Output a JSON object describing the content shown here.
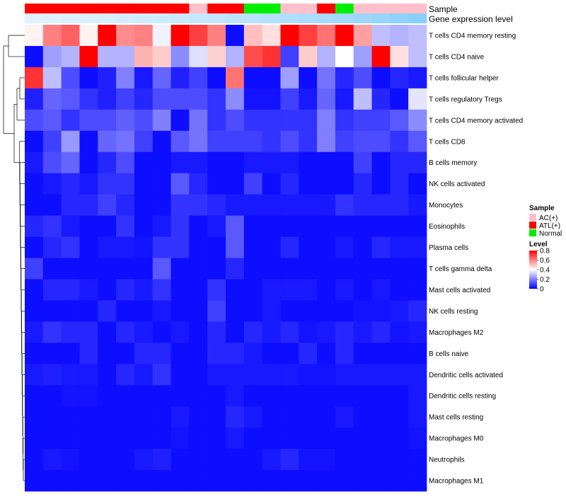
{
  "chart_data": {
    "type": "heatmap",
    "title": "",
    "annotations": {
      "sample_label": "Sample",
      "expression_label": "Gene expression level",
      "sample_groups": [
        "ATL(+)",
        "ATL(+)",
        "ATL(+)",
        "ATL(+)",
        "ATL(+)",
        "ATL(+)",
        "ATL(+)",
        "ATL(+)",
        "ATL(+)",
        "AC(+)",
        "ATL(+)",
        "ATL(+)",
        "Normal",
        "Normal",
        "AC(+)",
        "AC(+)",
        "ATL(+)",
        "Normal",
        "AC(+)",
        "AC(+)",
        "AC(+)",
        "AC(+)"
      ],
      "expression_levels": [
        0.0,
        0.02,
        0.05,
        0.08,
        0.12,
        0.15,
        0.18,
        0.22,
        0.26,
        0.3,
        0.35,
        0.4,
        0.45,
        0.5,
        0.55,
        0.6,
        0.65,
        0.7,
        0.75,
        0.82,
        0.9,
        0.97
      ]
    },
    "rows": [
      "T cells CD4 memory resting",
      "T cells CD4 naive",
      "T cells follicular helper",
      "T cells regulatory  Tregs",
      "T cells CD4 memory activated",
      "T cells CD8",
      "B cells memory",
      "NK cells activated",
      "Monocytes",
      "Eosinophils",
      "Plasma cells",
      "T cells gamma delta",
      "Mast cells activated",
      "NK cells resting",
      "Macrophages M2",
      "B cells naive",
      "Dendritic cells activated",
      "Dendritic cells resting",
      "Mast cells resting",
      "Macrophages M0",
      "Neutrophils",
      "Macrophages M1"
    ],
    "values": [
      [
        0.42,
        0.6,
        0.65,
        0.42,
        0.8,
        0.58,
        0.6,
        0.38,
        0.8,
        0.7,
        0.6,
        0.02,
        0.5,
        0.45,
        0.8,
        0.7,
        0.62,
        0.8,
        0.55,
        0.3,
        0.28,
        0.3
      ],
      [
        0.02,
        0.25,
        0.28,
        0.8,
        0.28,
        0.28,
        0.52,
        0.48,
        0.22,
        0.35,
        0.47,
        0.28,
        0.68,
        0.72,
        0.1,
        0.48,
        0.28,
        0.4,
        0.25,
        0.8,
        0.45,
        0.3
      ],
      [
        0.72,
        0.3,
        0.12,
        0.02,
        0.05,
        0.2,
        0.04,
        0.16,
        0.05,
        0.1,
        0.02,
        0.62,
        0.02,
        0.02,
        0.25,
        0.02,
        0.18,
        0.06,
        0.12,
        0.02,
        0.06,
        0.04
      ],
      [
        0.05,
        0.16,
        0.14,
        0.08,
        0.05,
        0.1,
        0.06,
        0.12,
        0.12,
        0.12,
        0.08,
        0.22,
        0.03,
        0.03,
        0.1,
        0.04,
        0.16,
        0.04,
        0.3,
        0.06,
        0.02,
        0.36
      ],
      [
        0.12,
        0.14,
        0.08,
        0.12,
        0.12,
        0.15,
        0.12,
        0.2,
        0.02,
        0.18,
        0.08,
        0.12,
        0.08,
        0.08,
        0.08,
        0.08,
        0.2,
        0.08,
        0.1,
        0.1,
        0.14,
        0.22
      ],
      [
        0.02,
        0.1,
        0.24,
        0.02,
        0.16,
        0.18,
        0.1,
        0.02,
        0.14,
        0.18,
        0.1,
        0.1,
        0.1,
        0.08,
        0.12,
        0.08,
        0.2,
        0.1,
        0.12,
        0.12,
        0.08,
        0.14
      ],
      [
        0.04,
        0.12,
        0.16,
        0.02,
        0.06,
        0.12,
        0.02,
        0.02,
        0.04,
        0.04,
        0.02,
        0.02,
        0.04,
        0.04,
        0.04,
        0.02,
        0.02,
        0.02,
        0.1,
        0.02,
        0.06,
        0.06
      ],
      [
        0.02,
        0.04,
        0.06,
        0.04,
        0.08,
        0.08,
        0.02,
        0.02,
        0.14,
        0.06,
        0.02,
        0.02,
        0.1,
        0.02,
        0.06,
        0.02,
        0.02,
        0.02,
        0.06,
        0.02,
        0.06,
        0.02
      ],
      [
        0.02,
        0.02,
        0.06,
        0.06,
        0.1,
        0.06,
        0.02,
        0.02,
        0.08,
        0.08,
        0.06,
        0.04,
        0.04,
        0.04,
        0.04,
        0.04,
        0.04,
        0.08,
        0.06,
        0.06,
        0.06,
        0.04
      ],
      [
        0.06,
        0.08,
        0.04,
        0.02,
        0.02,
        0.08,
        0.02,
        0.04,
        0.08,
        0.02,
        0.04,
        0.14,
        0.02,
        0.02,
        0.02,
        0.02,
        0.02,
        0.02,
        0.02,
        0.02,
        0.02,
        0.02
      ],
      [
        0.02,
        0.06,
        0.08,
        0.02,
        0.04,
        0.04,
        0.03,
        0.08,
        0.08,
        0.02,
        0.02,
        0.14,
        0.02,
        0.02,
        0.06,
        0.02,
        0.02,
        0.04,
        0.02,
        0.06,
        0.04,
        0.04
      ],
      [
        0.1,
        0.02,
        0.02,
        0.02,
        0.02,
        0.02,
        0.02,
        0.14,
        0.02,
        0.02,
        0.02,
        0.06,
        0.02,
        0.02,
        0.02,
        0.02,
        0.02,
        0.02,
        0.02,
        0.02,
        0.02,
        0.02
      ],
      [
        0.02,
        0.06,
        0.06,
        0.04,
        0.02,
        0.06,
        0.04,
        0.08,
        0.02,
        0.02,
        0.08,
        0.02,
        0.02,
        0.04,
        0.04,
        0.04,
        0.02,
        0.04,
        0.02,
        0.04,
        0.02,
        0.02
      ],
      [
        0.02,
        0.02,
        0.02,
        0.02,
        0.06,
        0.02,
        0.02,
        0.04,
        0.02,
        0.02,
        0.1,
        0.02,
        0.02,
        0.04,
        0.02,
        0.02,
        0.02,
        0.02,
        0.03,
        0.03,
        0.04,
        0.06
      ],
      [
        0.04,
        0.08,
        0.06,
        0.06,
        0.02,
        0.06,
        0.04,
        0.02,
        0.04,
        0.02,
        0.06,
        0.02,
        0.06,
        0.04,
        0.06,
        0.03,
        0.04,
        0.06,
        0.04,
        0.06,
        0.03,
        0.04
      ],
      [
        0.02,
        0.02,
        0.02,
        0.06,
        0.02,
        0.02,
        0.06,
        0.06,
        0.02,
        0.02,
        0.06,
        0.06,
        0.04,
        0.02,
        0.02,
        0.06,
        0.02,
        0.06,
        0.02,
        0.02,
        0.02,
        0.02
      ],
      [
        0.04,
        0.05,
        0.04,
        0.04,
        0.02,
        0.06,
        0.04,
        0.08,
        0.02,
        0.02,
        0.04,
        0.04,
        0.04,
        0.04,
        0.04,
        0.03,
        0.03,
        0.04,
        0.04,
        0.04,
        0.04,
        0.04
      ],
      [
        0.02,
        0.02,
        0.03,
        0.03,
        0.02,
        0.02,
        0.02,
        0.02,
        0.02,
        0.02,
        0.02,
        0.04,
        0.02,
        0.02,
        0.02,
        0.02,
        0.02,
        0.02,
        0.02,
        0.02,
        0.02,
        0.04
      ],
      [
        0.02,
        0.02,
        0.02,
        0.02,
        0.02,
        0.02,
        0.02,
        0.02,
        0.04,
        0.02,
        0.02,
        0.06,
        0.04,
        0.02,
        0.02,
        0.02,
        0.02,
        0.04,
        0.02,
        0.02,
        0.02,
        0.04
      ],
      [
        0.02,
        0.02,
        0.02,
        0.02,
        0.02,
        0.02,
        0.02,
        0.02,
        0.03,
        0.02,
        0.02,
        0.04,
        0.02,
        0.02,
        0.02,
        0.02,
        0.02,
        0.02,
        0.02,
        0.02,
        0.02,
        0.03
      ],
      [
        0.02,
        0.04,
        0.03,
        0.02,
        0.02,
        0.02,
        0.04,
        0.05,
        0.02,
        0.02,
        0.02,
        0.02,
        0.02,
        0.04,
        0.06,
        0.03,
        0.03,
        0.02,
        0.02,
        0.02,
        0.02,
        0.02
      ],
      [
        0.02,
        0.02,
        0.02,
        0.02,
        0.02,
        0.02,
        0.02,
        0.02,
        0.02,
        0.02,
        0.02,
        0.02,
        0.02,
        0.02,
        0.02,
        0.02,
        0.02,
        0.02,
        0.02,
        0.02,
        0.02,
        0.02
      ]
    ],
    "color_scale": {
      "min": 0,
      "max": 0.8,
      "colors": [
        "#0000ff",
        "#ffffff",
        "#ff0000"
      ]
    },
    "legend": {
      "sample_title": "Sample",
      "sample_entries": [
        {
          "label": "AC(+)",
          "color": "#ffc0cb"
        },
        {
          "label": "ATL(+)",
          "color": "#ff0000"
        },
        {
          "label": "Normal",
          "color": "#00ee00"
        }
      ],
      "level_title": "Level",
      "level_ticks": [
        "0.8",
        "0.6",
        "0.4",
        "0.2",
        "0"
      ],
      "level_tick_values": [
        0.8,
        0.6,
        0.4,
        0.2,
        0
      ]
    },
    "expression_colors": {
      "low": "#e0f3ff",
      "high": "#87cefa"
    },
    "dendrogram": "rows clustered (left)",
    "legend_position": "right"
  }
}
